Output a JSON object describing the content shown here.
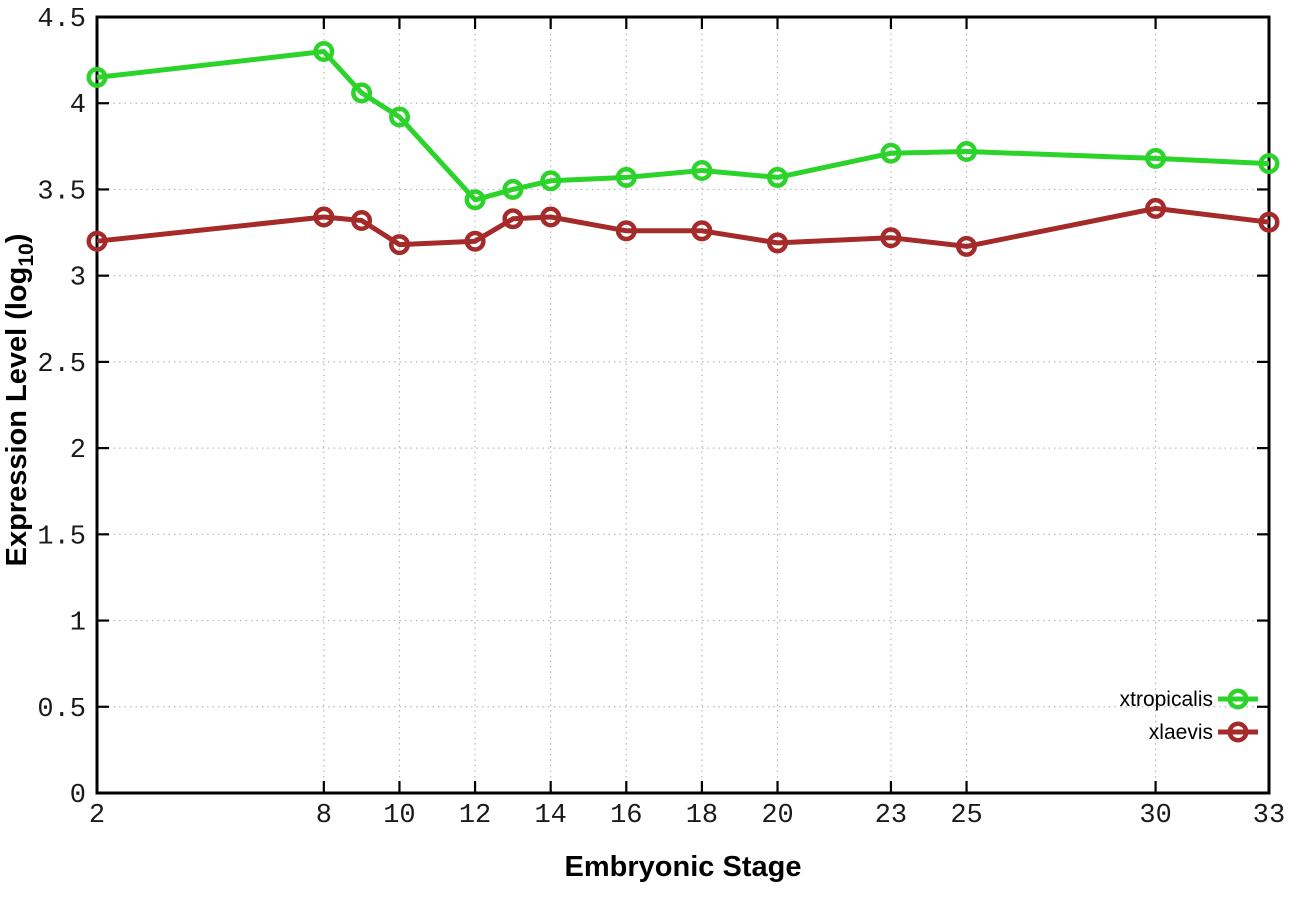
{
  "figure": {
    "background": "#ffffff"
  },
  "chart_data": {
    "type": "line",
    "title": "",
    "xlabel": "Embryonic Stage",
    "ylabel": "Expression Level (log10)",
    "ylabel_parts": {
      "main": "Expression Level (log",
      "sub": "10",
      "close": ")"
    },
    "xlim": [
      2,
      33
    ],
    "ylim": [
      0,
      4.5
    ],
    "grid": true,
    "legend_position": "inside-bottom-right",
    "axis_color": "#000000",
    "grid_color": "#b8b8b8",
    "tick_label_color": "#1a1a1a",
    "x": [
      2,
      8,
      9,
      10,
      12,
      13,
      14,
      16,
      18,
      20,
      23,
      25,
      30,
      33
    ],
    "xticks": [
      2,
      8,
      10,
      12,
      14,
      16,
      18,
      20,
      23,
      25,
      30,
      33
    ],
    "xtick_labels": [
      "2",
      "8",
      "10",
      "12",
      "14",
      "16",
      "18",
      "20",
      "23",
      "25",
      "30",
      "33"
    ],
    "yticks": [
      0,
      0.5,
      1,
      1.5,
      2,
      2.5,
      3,
      3.5,
      4,
      4.5
    ],
    "ytick_labels": [
      "0",
      "0.5",
      "1",
      "1.5",
      "2",
      "2.5",
      "3",
      "3.5",
      "4",
      "4.5"
    ],
    "series": [
      {
        "name": "xtropicalis",
        "color": "#2bd32b",
        "marker": "open-circle",
        "values": [
          4.15,
          4.3,
          4.06,
          3.92,
          3.44,
          3.5,
          3.55,
          3.57,
          3.61,
          3.57,
          3.71,
          3.72,
          3.68,
          3.65
        ]
      },
      {
        "name": "xlaevis",
        "color": "#a52a2a",
        "marker": "open-circle",
        "values": [
          3.2,
          3.34,
          3.32,
          3.18,
          3.2,
          3.33,
          3.34,
          3.26,
          3.26,
          3.19,
          3.22,
          3.17,
          3.39,
          3.31
        ]
      }
    ]
  }
}
